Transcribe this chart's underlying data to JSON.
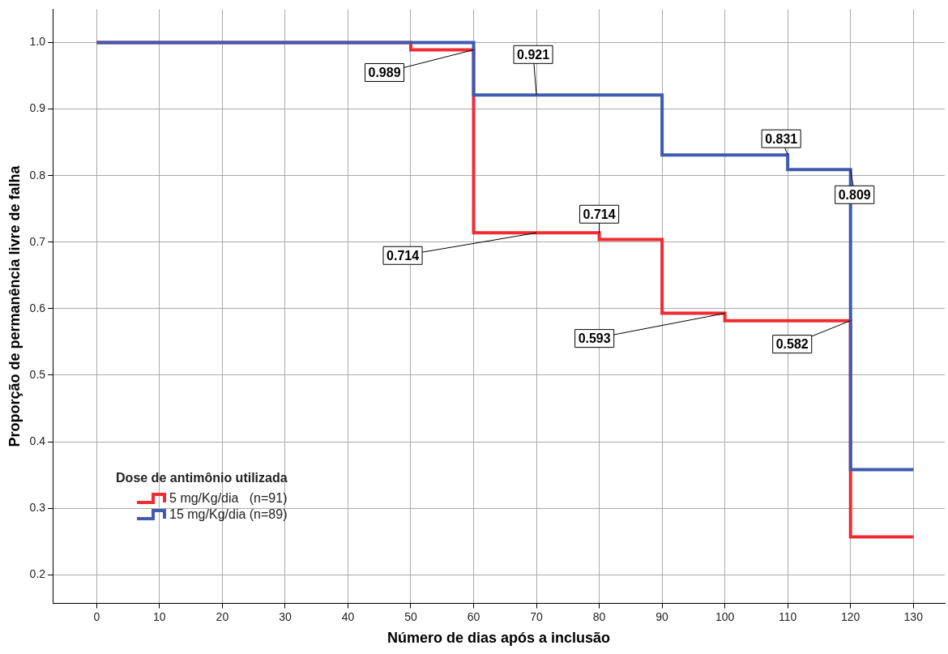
{
  "chart_data": {
    "type": "step",
    "xlabel": "Número de dias após a inclusão",
    "ylabel": "Proporção de permanência livre de falha",
    "legend_title": "Dose de antimônio utilizada",
    "legend": "bottom left",
    "grid": true,
    "xlim": [
      -7,
      135
    ],
    "xticks": [
      0,
      10,
      20,
      30,
      40,
      50,
      60,
      70,
      80,
      90,
      100,
      110,
      120,
      130
    ],
    "ylim": [
      0.157,
      1.05
    ],
    "yticks": [
      {
        "value": 0.2,
        "label": "0.2"
      },
      {
        "value": 0.3,
        "label": "0.3"
      },
      {
        "value": 0.4,
        "label": "0.4"
      },
      {
        "value": 0.5,
        "label": "0.5"
      },
      {
        "value": 0.6,
        "label": "0.6"
      },
      {
        "value": 0.7,
        "label": "0.7"
      },
      {
        "value": 0.8,
        "label": "0.8"
      },
      {
        "value": 0.9,
        "label": "0.9"
      },
      {
        "value": 1,
        "label": "1.0"
      }
    ],
    "series": [
      {
        "name": "5 mg/Kg/dia   (n=91)",
        "color": "#f02c33",
        "x": [
          0,
          50,
          60,
          80,
          90,
          100,
          120,
          130
        ],
        "values": [
          1,
          0.989,
          0.714,
          0.704,
          0.593,
          0.582,
          0.257,
          0.257
        ]
      },
      {
        "name": "15 mg/Kg/dia (n=89)",
        "color": "#3f5bb0",
        "x": [
          0,
          60,
          90,
          110,
          120,
          130
        ],
        "values": [
          1,
          0.921,
          0.831,
          0.809,
          0.358,
          0.358
        ]
      }
    ],
    "annotations": [
      {
        "text": "0.989",
        "x": 60,
        "y": 0.989
      },
      {
        "text": "0.921",
        "x": 70,
        "y": 0.921
      },
      {
        "text": "0.714",
        "x": 80,
        "y": 0.714
      },
      {
        "text": "0.714",
        "x": 70,
        "y": 0.714
      },
      {
        "text": "0.593",
        "x": 100,
        "y": 0.593
      },
      {
        "text": "0.831",
        "x": 110,
        "y": 0.831
      },
      {
        "text": "0.809",
        "x": 120,
        "y": 0.809
      },
      {
        "text": "0.582",
        "x": 120,
        "y": 0.582
      }
    ]
  }
}
